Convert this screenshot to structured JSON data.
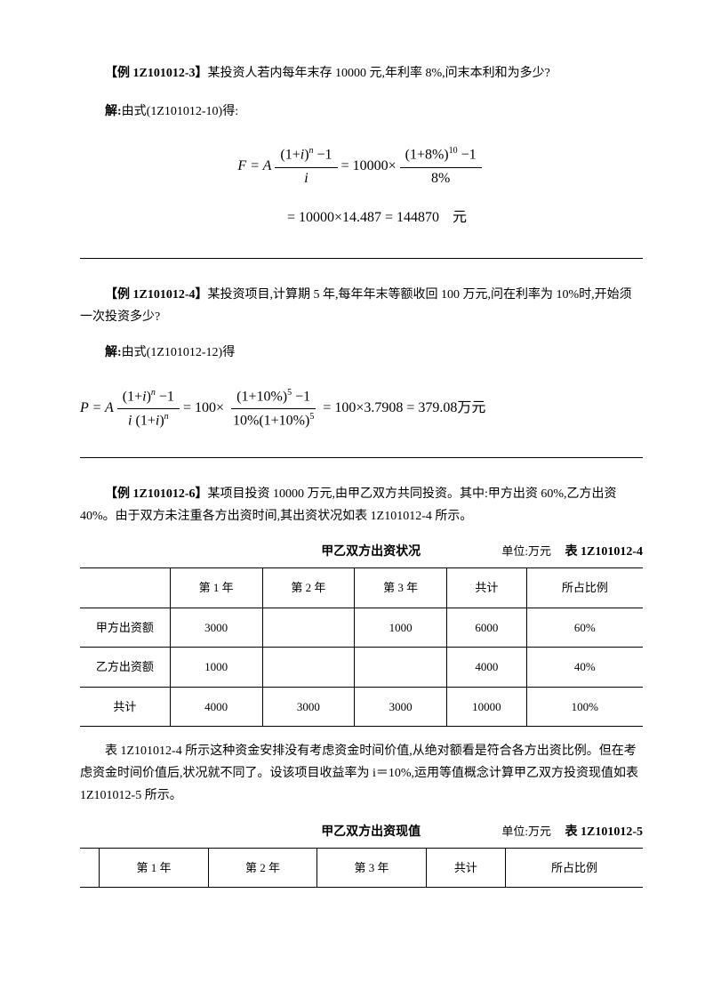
{
  "example3": {
    "header_bold": "【例 1Z101012-3】",
    "header_text": "某投资人若内每年末存 10000 元,年利率 8%,问末本利和为多少?",
    "solution_bold": "解:",
    "solution_text": "由式(1Z101012-10)得:",
    "formula": {
      "lhs": "F = A",
      "frac1_num_a": "(1+",
      "frac1_num_i": "i",
      "frac1_num_b": ")",
      "frac1_num_sup": "n",
      "frac1_num_c": " −1",
      "frac1_den": "i",
      "eq1": " = 10000×",
      "frac2_num": "(1+8%)",
      "frac2_num_sup": "10",
      "frac2_num_c": " −1",
      "frac2_den": "8%",
      "line2": "= 10000×14.487 = 144870",
      "unit": "元"
    }
  },
  "example4": {
    "header_bold": "【例 1Z101012-4】",
    "header_text": "某投资项目,计算期 5 年,每年年末等额收回 100 万元,问在利率为 10%时,开始须一次投资多少?",
    "solution_bold": "解:",
    "solution_text": "由式(1Z101012-12)得",
    "formula": {
      "lhs": "P = A",
      "frac1_num_a": "(1+",
      "frac1_num_i": "i",
      "frac1_num_b": ")",
      "frac1_num_sup": "n",
      "frac1_num_c": " −1",
      "frac1_den_a": "i",
      "frac1_den_b": "(1+",
      "frac1_den_c": "i",
      "frac1_den_d": ")",
      "frac1_den_sup": "n",
      "eq1": " = 100×",
      "frac2_num_a": "(1+10%)",
      "frac2_num_sup": "5",
      "frac2_num_c": " −1",
      "frac2_den_a": "10%(1+10%)",
      "frac2_den_sup": "5",
      "eq2": " = 100×3.7908 = 379.08万元"
    }
  },
  "example6": {
    "header_bold": "【例 1Z101012-6】",
    "header_text": "某项目投资 10000 万元,由甲乙双方共同投资。其中:甲方出资 60%,乙方出资 40%。由于双方未注重各方出资时间,其出资状况如表 1Z101012-4 所示。"
  },
  "table1": {
    "title": "甲乙双方出资状况",
    "unit": "单位:万元",
    "ref": "表 1Z101012-4",
    "headers": [
      "",
      "第 1 年",
      "第 2 年",
      "第 3 年",
      "共计",
      "所占比例"
    ],
    "rows": [
      [
        "甲方出资额",
        "3000",
        "",
        "1000",
        "6000",
        "60%"
      ],
      [
        "乙方出资额",
        "1000",
        "",
        "",
        "4000",
        "40%"
      ],
      [
        "共计",
        "4000",
        "3000",
        "3000",
        "10000",
        "100%"
      ]
    ]
  },
  "middle_para": "表 1Z101012-4 所示这种资金安排没有考虑资金时间价值,从绝对额看是符合各方出资比例。但在考虑资金时间价值后,状况就不同了。设该项目收益率为 i＝10%,运用等值概念计算甲乙双方投资现值如表1Z101012-5 所示。",
  "table2": {
    "title": "甲乙双方出资现值",
    "unit": "单位:万元",
    "ref": "表 1Z101012-5",
    "headers": [
      "",
      "第 1 年",
      "第 2 年",
      "第 3 年",
      "共计",
      "所占比例"
    ]
  }
}
